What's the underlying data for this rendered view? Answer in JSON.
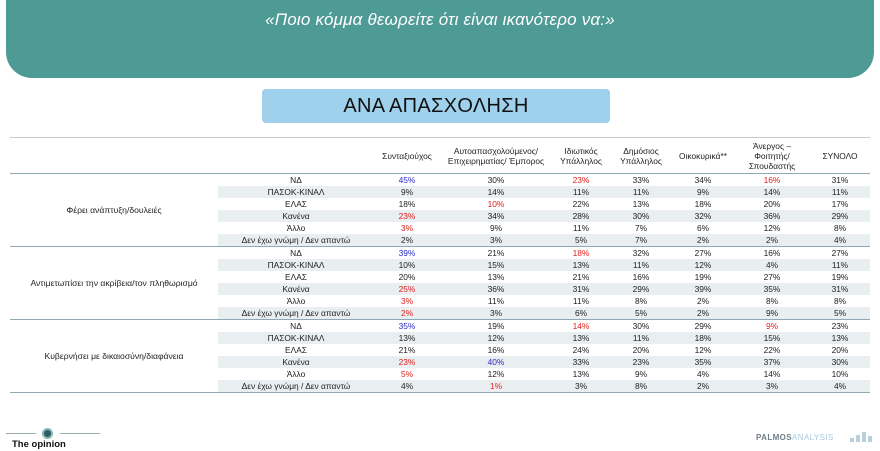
{
  "header": {
    "title": "«Ποιο κόμμα θεωρείτε ότι είναι ικανότερο να:»"
  },
  "section": {
    "label": "ΑΝΑ ΑΠΑΣΧΟΛΗΣΗ"
  },
  "columns": [
    "Συνταξιούχος",
    "Αυτοαπασχολούμενος/ Επιχειρηματίας/ Έμπορος",
    "Ιδιωτικός Υπάλληλος",
    "Δημόσιος Υπάλληλος",
    "Οικοκυρικά**",
    "Άνεργος – Φοιτητής/ Σπουδαστής",
    "ΣΥΝΟΛΟ"
  ],
  "groups": [
    {
      "label": "Φέρει ανάπτυξη/δουλειές",
      "rows": [
        {
          "option": "ΝΔ",
          "values": [
            "45%",
            "30%",
            "23%",
            "33%",
            "34%",
            "16%",
            "31%"
          ],
          "colors": [
            "blue",
            "",
            "red",
            "",
            "",
            "red",
            ""
          ]
        },
        {
          "option": "ΠΑΣΟΚ-ΚΙΝΑΛ",
          "values": [
            "9%",
            "14%",
            "11%",
            "11%",
            "9%",
            "14%",
            "11%"
          ],
          "colors": [
            "",
            "",
            "",
            "",
            "",
            "",
            ""
          ]
        },
        {
          "option": "ΕΛΑΣ",
          "values": [
            "18%",
            "10%",
            "22%",
            "13%",
            "18%",
            "20%",
            "17%"
          ],
          "colors": [
            "",
            "red",
            "",
            "",
            "",
            "",
            ""
          ]
        },
        {
          "option": "Κανένα",
          "values": [
            "23%",
            "34%",
            "28%",
            "30%",
            "32%",
            "36%",
            "29%"
          ],
          "colors": [
            "red",
            "",
            "",
            "",
            "",
            "",
            ""
          ]
        },
        {
          "option": "Άλλο",
          "values": [
            "3%",
            "9%",
            "11%",
            "7%",
            "6%",
            "12%",
            "8%"
          ],
          "colors": [
            "red",
            "",
            "",
            "",
            "",
            "",
            ""
          ]
        },
        {
          "option": "Δεν έχω γνώμη / Δεν απαντώ",
          "values": [
            "2%",
            "3%",
            "5%",
            "7%",
            "2%",
            "2%",
            "4%"
          ],
          "colors": [
            "",
            "",
            "",
            "",
            "",
            "",
            ""
          ]
        }
      ]
    },
    {
      "label": "Αντιμετωπίσει την ακρίβεια/τον πληθωρισμό",
      "rows": [
        {
          "option": "ΝΔ",
          "values": [
            "39%",
            "21%",
            "18%",
            "32%",
            "27%",
            "16%",
            "27%"
          ],
          "colors": [
            "blue",
            "",
            "red",
            "",
            "",
            "",
            ""
          ]
        },
        {
          "option": "ΠΑΣΟΚ-ΚΙΝΑΛ",
          "values": [
            "10%",
            "15%",
            "13%",
            "11%",
            "12%",
            "4%",
            "11%"
          ],
          "colors": [
            "",
            "",
            "",
            "",
            "",
            "",
            ""
          ]
        },
        {
          "option": "ΕΛΑΣ",
          "values": [
            "20%",
            "13%",
            "21%",
            "16%",
            "19%",
            "27%",
            "19%"
          ],
          "colors": [
            "",
            "",
            "",
            "",
            "",
            "",
            ""
          ]
        },
        {
          "option": "Κανένα",
          "values": [
            "25%",
            "36%",
            "31%",
            "29%",
            "39%",
            "35%",
            "31%"
          ],
          "colors": [
            "red",
            "",
            "",
            "",
            "",
            "",
            ""
          ]
        },
        {
          "option": "Άλλο",
          "values": [
            "3%",
            "11%",
            "11%",
            "8%",
            "2%",
            "8%",
            "8%"
          ],
          "colors": [
            "red",
            "",
            "",
            "",
            "",
            "",
            ""
          ]
        },
        {
          "option": "Δεν έχω γνώμη / Δεν απαντώ",
          "values": [
            "2%",
            "3%",
            "6%",
            "5%",
            "2%",
            "9%",
            "5%"
          ],
          "colors": [
            "red",
            "",
            "",
            "",
            "",
            "",
            ""
          ]
        }
      ]
    },
    {
      "label": "Κυβερνήσει με δικαιοσύνη/διαφάνεια",
      "rows": [
        {
          "option": "ΝΔ",
          "values": [
            "35%",
            "19%",
            "14%",
            "30%",
            "29%",
            "9%",
            "23%"
          ],
          "colors": [
            "blue",
            "",
            "red",
            "",
            "",
            "red",
            ""
          ]
        },
        {
          "option": "ΠΑΣΟΚ-ΚΙΝΑΛ",
          "values": [
            "13%",
            "12%",
            "13%",
            "11%",
            "18%",
            "15%",
            "13%"
          ],
          "colors": [
            "",
            "",
            "",
            "",
            "",
            "",
            ""
          ]
        },
        {
          "option": "ΕΛΑΣ",
          "values": [
            "21%",
            "16%",
            "24%",
            "20%",
            "12%",
            "22%",
            "20%"
          ],
          "colors": [
            "",
            "",
            "",
            "",
            "",
            "",
            ""
          ]
        },
        {
          "option": "Κανένα",
          "values": [
            "23%",
            "40%",
            "33%",
            "23%",
            "35%",
            "37%",
            "30%"
          ],
          "colors": [
            "red",
            "blue",
            "",
            "",
            "",
            "",
            ""
          ]
        },
        {
          "option": "Άλλο",
          "values": [
            "5%",
            "12%",
            "13%",
            "9%",
            "4%",
            "14%",
            "10%"
          ],
          "colors": [
            "red",
            "",
            "",
            "",
            "",
            "",
            ""
          ]
        },
        {
          "option": "Δεν έχω γνώμη / Δεν απαντώ",
          "values": [
            "4%",
            "1%",
            "3%",
            "8%",
            "2%",
            "3%",
            "4%"
          ],
          "colors": [
            "",
            "red",
            "",
            "",
            "",
            "",
            ""
          ]
        }
      ]
    }
  ],
  "footer": {
    "logo_text": "The opinion",
    "brand_left": "PALMOS",
    "brand_right": "ANALYSIS"
  },
  "colors": {
    "header_band": "#4e9a94",
    "section_pill": "#9fd0ec",
    "highlight_blue": "#2a2ac8",
    "highlight_red": "#e0201c"
  }
}
